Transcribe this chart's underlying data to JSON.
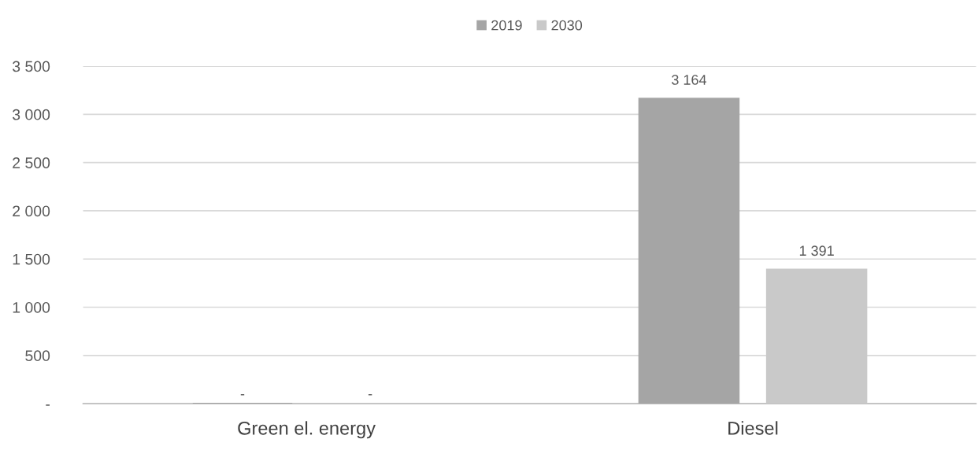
{
  "chart_data": {
    "type": "bar",
    "categories": [
      "Green el. energy",
      "Diesel"
    ],
    "series": [
      {
        "name": "2019",
        "color": "#a5a5a5",
        "values": [
          0,
          3164
        ],
        "value_labels": [
          "-",
          "3 164"
        ]
      },
      {
        "name": "2030",
        "color": "#c9c9c9",
        "values": [
          0,
          1391
        ],
        "value_labels": [
          "-",
          "1 391"
        ]
      }
    ],
    "ylim": [
      0,
      3500
    ],
    "yticks": [
      {
        "value": 0,
        "label": "-"
      },
      500,
      {
        "value": 1000,
        "label": "1 000"
      },
      {
        "value": 1500,
        "label": "1 500"
      },
      {
        "value": 2000,
        "label": "2 000"
      },
      {
        "value": 2500,
        "label": "2 500"
      },
      {
        "value": 3000,
        "label": "3 000"
      },
      {
        "value": 3500,
        "label": "3 500"
      }
    ],
    "grid": "y",
    "legend": "top"
  }
}
